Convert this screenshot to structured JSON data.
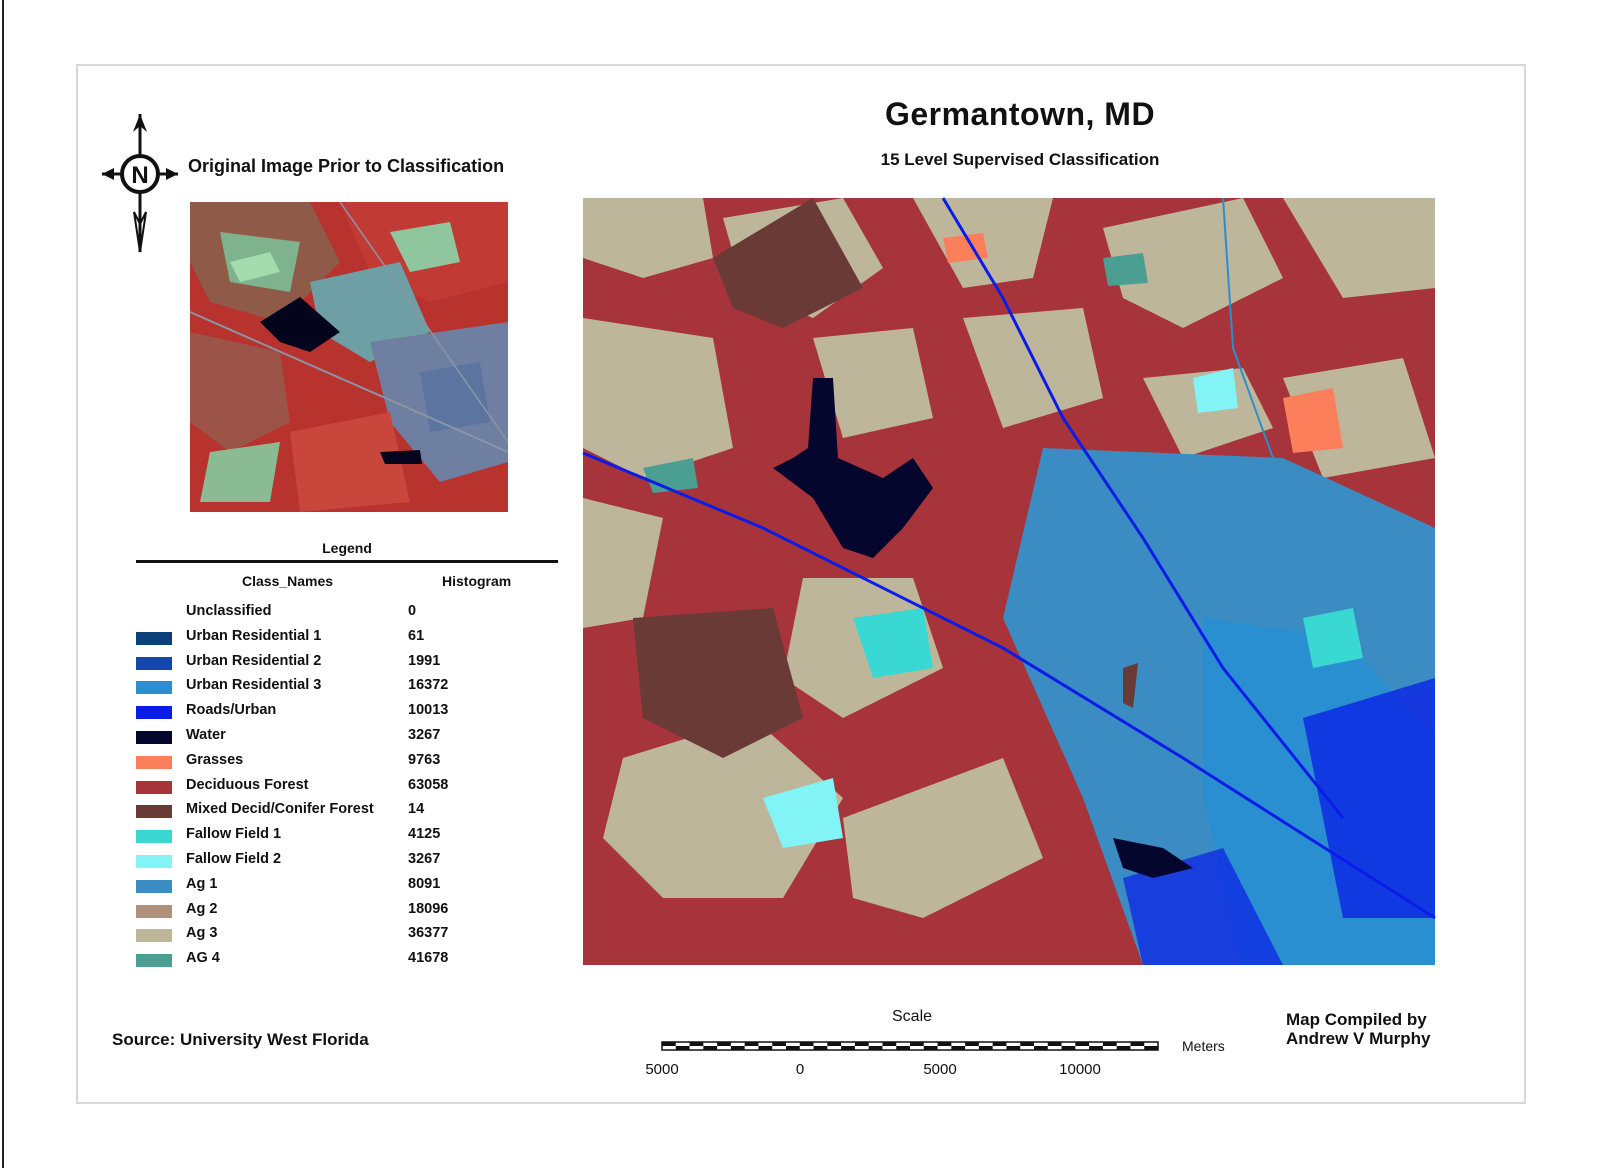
{
  "map": {
    "title": "Germantown, MD",
    "subtitle": "15 Level Supervised Classification",
    "original_image_label": "Original Image Prior to Classification",
    "compass_letter": "N",
    "source": "Source: University West Florida",
    "compiled_line1": "Map Compiled by",
    "compiled_line2": "Andrew V Murphy"
  },
  "legend": {
    "title": "Legend",
    "col_names": "Class_Names",
    "col_hist": "Histogram",
    "classes": [
      {
        "name": "Unclassified",
        "histogram": "0",
        "color": "#ffffff"
      },
      {
        "name": "Urban Residential 1",
        "histogram": "61",
        "color": "#0a3f7a"
      },
      {
        "name": "Urban Residential 2",
        "histogram": "1991",
        "color": "#1446b0"
      },
      {
        "name": "Urban Residential 3",
        "histogram": "16372",
        "color": "#2a8fd0"
      },
      {
        "name": "Roads/Urban",
        "histogram": "10013",
        "color": "#0a1ce8"
      },
      {
        "name": "Water",
        "histogram": "3267",
        "color": "#05062e"
      },
      {
        "name": "Grasses",
        "histogram": "9763",
        "color": "#fb7f5a"
      },
      {
        "name": "Deciduous Forest",
        "histogram": "63058",
        "color": "#a7343a"
      },
      {
        "name": "Mixed Decid/Conifer Forest",
        "histogram": "14",
        "color": "#6a3a36"
      },
      {
        "name": "Fallow Field 1",
        "histogram": "4125",
        "color": "#3ad8d2"
      },
      {
        "name": "Fallow Field 2",
        "histogram": "3267",
        "color": "#82f4f6"
      },
      {
        "name": "Ag 1",
        "histogram": "8091",
        "color": "#3a8cc2"
      },
      {
        "name": "Ag 2",
        "histogram": "18096",
        "color": "#b0917e"
      },
      {
        "name": "Ag 3",
        "histogram": "36377",
        "color": "#beb69b"
      },
      {
        "name": "AG 4",
        "histogram": "41678",
        "color": "#4a9e92"
      }
    ]
  },
  "scale": {
    "title": "Scale",
    "units": "Meters",
    "ticks": [
      "5000",
      "0",
      "5000",
      "10000"
    ]
  }
}
